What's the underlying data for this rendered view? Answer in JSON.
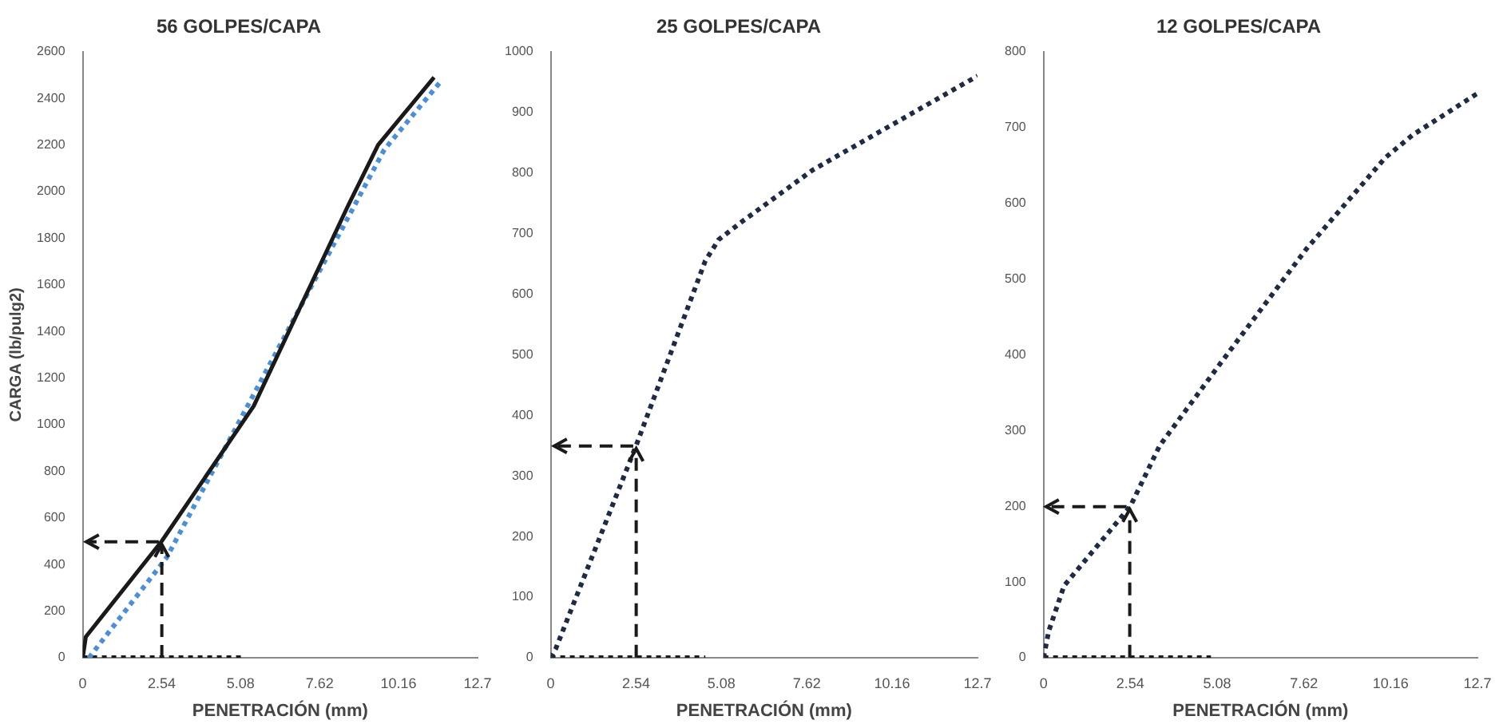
{
  "chart_data": [
    {
      "type": "line",
      "title": "56 GOLPES/CAPA",
      "xlabel": "PENETRACIÓN (mm)",
      "ylabel": "CARGA (lb/pulg2)",
      "xlim": [
        0,
        12.7
      ],
      "xticks": [
        0,
        2.54,
        5.08,
        7.62,
        10.16,
        12.7
      ],
      "ylim": [
        0,
        2600
      ],
      "yticks": [
        0,
        200,
        400,
        600,
        800,
        1000,
        1200,
        1400,
        1600,
        1800,
        2000,
        2200,
        2400,
        2600
      ],
      "grid": false,
      "legend": false,
      "marker": "none",
      "series": [
        {
          "type": "line",
          "color": "#1a1a1a",
          "line_style": "solid",
          "x": [
            0,
            0.1,
            2.54,
            5.5,
            8.5,
            9.5,
            11.3
          ],
          "values": [
            0,
            90,
            500,
            1080,
            1930,
            2200,
            2490
          ]
        },
        {
          "type": "line",
          "color": "#4a8fd8",
          "line_style": "dotted",
          "x": [
            0.2,
            2.7,
            9.7,
            11.5
          ],
          "values": [
            0,
            430,
            2180,
            2470
          ]
        },
        {
          "type": "line",
          "color": "#1a1a1a",
          "line_style": "dotted",
          "x": [
            0,
            5.2
          ],
          "values": [
            0,
            0
          ]
        }
      ]
    },
    {
      "type": "line",
      "title": "25 GOLPES/CAPA",
      "xlabel": "PENETRACIÓN (mm)",
      "xlim": [
        0,
        12.7
      ],
      "xticks": [
        0,
        2.54,
        5.08,
        7.62,
        10.16,
        12.7
      ],
      "ylim": [
        0,
        1000
      ],
      "yticks": [
        0,
        100,
        200,
        300,
        400,
        500,
        600,
        700,
        800,
        900,
        1000
      ],
      "grid": false,
      "legend": false,
      "marker": "none",
      "series": [
        {
          "type": "line",
          "color": "#1f2a44",
          "line_style": "dotted",
          "x": [
            0,
            0.15,
            2.54,
            4.6,
            5.0,
            5.7,
            7.8,
            12.7
          ],
          "values": [
            0,
            15,
            350,
            655,
            690,
            720,
            805,
            960
          ]
        },
        {
          "type": "line",
          "color": "#1a1a1a",
          "line_style": "dotted",
          "x": [
            0,
            4.6
          ],
          "values": [
            0,
            0
          ]
        }
      ]
    },
    {
      "type": "line",
      "title": "12 GOLPES/CAPA",
      "xlabel": "PENETRACIÓN (mm)",
      "xlim": [
        0,
        12.7
      ],
      "xticks": [
        0,
        2.54,
        5.08,
        7.62,
        10.16,
        12.7
      ],
      "ylim": [
        0,
        800
      ],
      "yticks": [
        0,
        100,
        200,
        300,
        400,
        500,
        600,
        700,
        800
      ],
      "grid": false,
      "legend": false,
      "marker": "none",
      "series": [
        {
          "type": "line",
          "color": "#1f2a44",
          "line_style": "dotted",
          "x": [
            0,
            0.15,
            0.6,
            2.54,
            3.4,
            5.2,
            7.7,
            10,
            10.8,
            12.7
          ],
          "values": [
            0,
            35,
            95,
            200,
            280,
            390,
            540,
            660,
            690,
            745
          ]
        },
        {
          "type": "line",
          "color": "#1a1a1a",
          "line_style": "dotted",
          "x": [
            0,
            4.9
          ],
          "values": [
            0,
            0
          ]
        }
      ]
    }
  ]
}
